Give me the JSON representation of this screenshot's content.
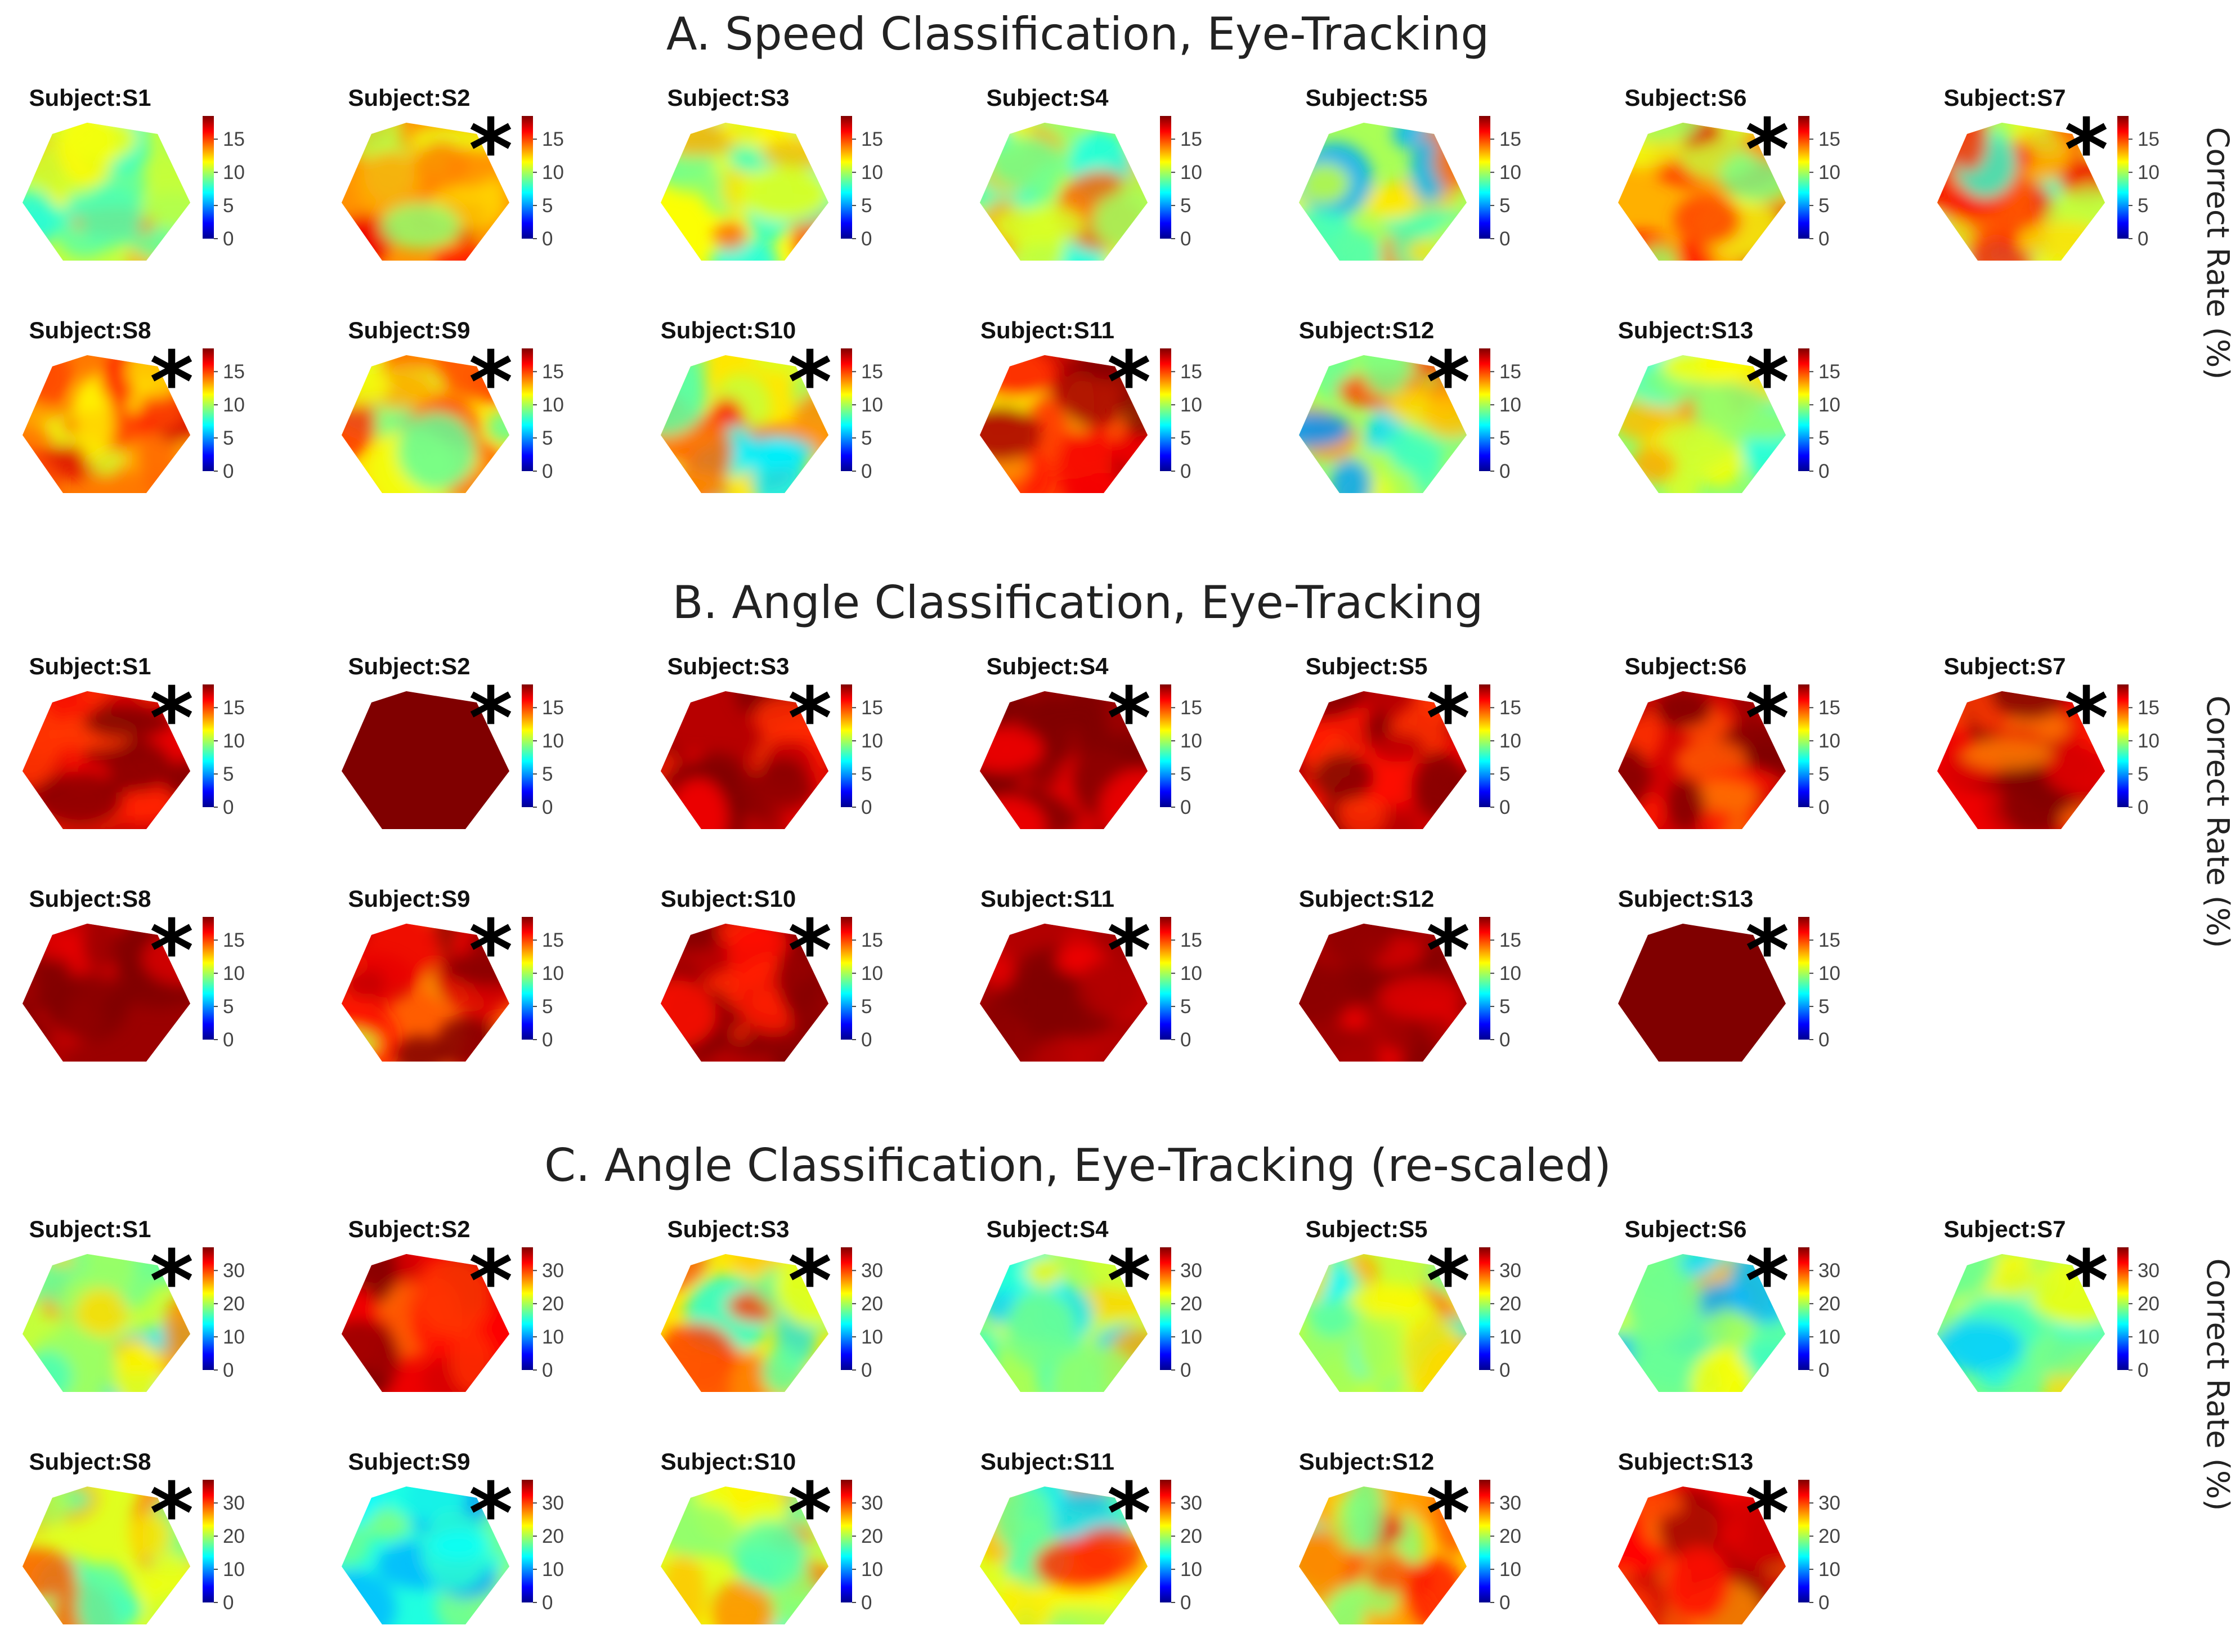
{
  "colormap": [
    "#00008f",
    "#0000ff",
    "#00ffff",
    "#ffff00",
    "#ff0000",
    "#800000"
  ],
  "star_symbol": "*",
  "panels": [
    {
      "title": "A. Speed Classification, Eye-Tracking",
      "ylabel": "Correct Rate (%)",
      "scale_max": 18.5,
      "cbar_ticks": [
        "0",
        "5",
        "10",
        "15"
      ],
      "tick_values": [
        0,
        5,
        10,
        15
      ],
      "subjects": [
        {
          "label": "Subject:S1",
          "star": false,
          "mean": 10.5,
          "spread": 2.5
        },
        {
          "label": "Subject:S2",
          "star": true,
          "mean": 13.5,
          "spread": 2.5
        },
        {
          "label": "Subject:S3",
          "star": false,
          "mean": 11.5,
          "spread": 3.0
        },
        {
          "label": "Subject:S4",
          "star": false,
          "mean": 10.5,
          "spread": 2.5
        },
        {
          "label": "Subject:S5",
          "star": false,
          "mean": 10.0,
          "spread": 3.0
        },
        {
          "label": "Subject:S6",
          "star": true,
          "mean": 13.0,
          "spread": 2.5
        },
        {
          "label": "Subject:S7",
          "star": true,
          "mean": 11.0,
          "spread": 3.5
        },
        {
          "label": "Subject:S8",
          "star": true,
          "mean": 14.0,
          "spread": 2.0
        },
        {
          "label": "Subject:S9",
          "star": true,
          "mean": 12.0,
          "spread": 2.5
        },
        {
          "label": "Subject:S10",
          "star": true,
          "mean": 12.0,
          "spread": 3.5
        },
        {
          "label": "Subject:S11",
          "star": true,
          "mean": 15.0,
          "spread": 2.5
        },
        {
          "label": "Subject:S12",
          "star": true,
          "mean": 10.0,
          "spread": 3.5
        },
        {
          "label": "Subject:S13",
          "star": true,
          "mean": 9.5,
          "spread": 3.0
        }
      ]
    },
    {
      "title": "B. Angle Classification, Eye-Tracking",
      "ylabel": "Correct Rate (%)",
      "scale_max": 18.5,
      "cbar_ticks": [
        "0",
        "5",
        "10",
        "15"
      ],
      "tick_values": [
        0,
        5,
        10,
        15
      ],
      "subjects": [
        {
          "label": "Subject:S1",
          "star": true,
          "mean": 17.0,
          "spread": 1.8
        },
        {
          "label": "Subject:S2",
          "star": true,
          "mean": 18.5,
          "spread": 0
        },
        {
          "label": "Subject:S3",
          "star": true,
          "mean": 17.5,
          "spread": 1.8
        },
        {
          "label": "Subject:S4",
          "star": true,
          "mean": 18.0,
          "spread": 1.2
        },
        {
          "label": "Subject:S5",
          "star": true,
          "mean": 17.5,
          "spread": 1.5
        },
        {
          "label": "Subject:S6",
          "star": true,
          "mean": 17.0,
          "spread": 2.0
        },
        {
          "label": "Subject:S7",
          "star": true,
          "mean": 16.5,
          "spread": 1.8
        },
        {
          "label": "Subject:S8",
          "star": true,
          "mean": 18.0,
          "spread": 1.0
        },
        {
          "label": "Subject:S9",
          "star": true,
          "mean": 14.5,
          "spread": 3.0
        },
        {
          "label": "Subject:S10",
          "star": true,
          "mean": 17.5,
          "spread": 1.5
        },
        {
          "label": "Subject:S11",
          "star": true,
          "mean": 17.8,
          "spread": 1.2
        },
        {
          "label": "Subject:S12",
          "star": true,
          "mean": 17.8,
          "spread": 1.2
        },
        {
          "label": "Subject:S13",
          "star": true,
          "mean": 18.5,
          "spread": 0
        }
      ]
    },
    {
      "title": "C. Angle Classification, Eye-Tracking (re-scaled)",
      "ylabel": "Correct Rate (%)",
      "scale_max": 37,
      "cbar_ticks": [
        "0",
        "10",
        "20",
        "30"
      ],
      "tick_values": [
        0,
        10,
        20,
        30
      ],
      "subjects": [
        {
          "label": "Subject:S1",
          "star": true,
          "mean": 21,
          "spread": 5
        },
        {
          "label": "Subject:S2",
          "star": true,
          "mean": 33,
          "spread": 3
        },
        {
          "label": "Subject:S3",
          "star": true,
          "mean": 24,
          "spread": 6
        },
        {
          "label": "Subject:S4",
          "star": true,
          "mean": 20,
          "spread": 5
        },
        {
          "label": "Subject:S5",
          "star": true,
          "mean": 21,
          "spread": 5
        },
        {
          "label": "Subject:S6",
          "star": true,
          "mean": 18,
          "spread": 5
        },
        {
          "label": "Subject:S7",
          "star": true,
          "mean": 18,
          "spread": 4
        },
        {
          "label": "Subject:S8",
          "star": true,
          "mean": 22,
          "spread": 5
        },
        {
          "label": "Subject:S9",
          "star": true,
          "mean": 15,
          "spread": 3
        },
        {
          "label": "Subject:S10",
          "star": true,
          "mean": 22,
          "spread": 5
        },
        {
          "label": "Subject:S11",
          "star": true,
          "mean": 22,
          "spread": 6
        },
        {
          "label": "Subject:S12",
          "star": true,
          "mean": 25,
          "spread": 6
        },
        {
          "label": "Subject:S13",
          "star": true,
          "mean": 32,
          "spread": 4
        }
      ]
    }
  ],
  "chart_data": {
    "type": "heatmap",
    "description_title": "Correct Rate (%)",
    "panels": [
      {
        "title": "A. Speed Classification, Eye-Tracking",
        "colorbar_range": [
          0,
          18.5
        ],
        "colorbar_ticks": [
          0,
          5,
          10,
          15
        ],
        "significant_subjects": [
          "S2",
          "S6",
          "S7",
          "S8",
          "S9",
          "S10",
          "S11",
          "S12",
          "S13"
        ]
      },
      {
        "title": "B. Angle Classification, Eye-Tracking",
        "colorbar_range": [
          0,
          18.5
        ],
        "colorbar_ticks": [
          0,
          5,
          10,
          15
        ],
        "significant_subjects": [
          "S1",
          "S2",
          "S3",
          "S4",
          "S5",
          "S6",
          "S7",
          "S8",
          "S9",
          "S10",
          "S11",
          "S12",
          "S13"
        ]
      },
      {
        "title": "C. Angle Classification, Eye-Tracking (re-scaled)",
        "colorbar_range": [
          0,
          37
        ],
        "colorbar_ticks": [
          0,
          10,
          20,
          30
        ],
        "significant_subjects": [
          "S1",
          "S2",
          "S3",
          "S4",
          "S5",
          "S6",
          "S7",
          "S8",
          "S9",
          "S10",
          "S11",
          "S12",
          "S13"
        ]
      }
    ]
  }
}
